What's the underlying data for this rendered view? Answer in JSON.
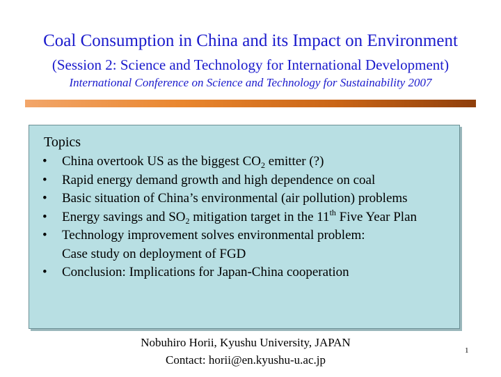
{
  "slide": {
    "title": "Coal Consumption in China and its Impact on Environment",
    "subtitle": "(Session 2: Science and Technology for International Development)",
    "conference": "International Conference on Science and Technology for Sustainability 2007",
    "divider_colors": [
      "#f2a66a",
      "#e9862e",
      "#c86416",
      "#8f3f0c"
    ],
    "topics": {
      "heading": "Topics",
      "bullet": "•",
      "items": [
        {
          "text_before": "China overtook US as the biggest CO",
          "sub": "2",
          "text_after": " emitter (?)"
        },
        {
          "text": "Rapid energy demand growth and high dependence on coal"
        },
        {
          "text": "Basic situation of China’s environmental (air pollution) problems"
        },
        {
          "text_before": "Energy savings and SO",
          "sub": "2",
          "text_middle": " mitigation target in the 11",
          "sup": "th",
          "text_after": " Five Year Plan"
        },
        {
          "line1": "Technology improvement solves environmental problem:",
          "line2": "Case study on deployment of FGD"
        },
        {
          "text": "Conclusion: Implications for Japan-China cooperation"
        }
      ]
    },
    "author": "Nobuhiro Horii, Kyushu University, JAPAN",
    "contact": "Contact: horii@en.kyushu-u.ac.jp",
    "page_number": "1"
  }
}
